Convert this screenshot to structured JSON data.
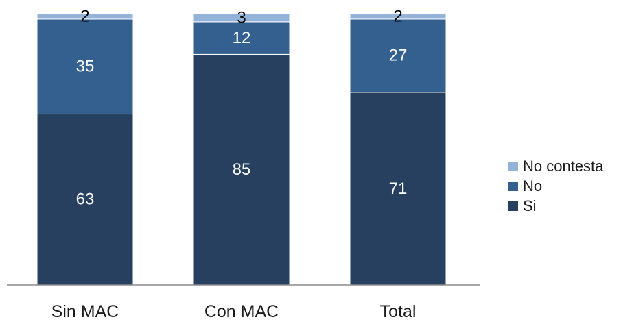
{
  "chart_data": {
    "type": "bar",
    "stacked": true,
    "categories": [
      "Sin MAC",
      "Con MAC",
      "Total"
    ],
    "series": [
      {
        "name": "Si",
        "values": [
          63,
          85,
          71
        ],
        "color": "#27405f",
        "label_color": "#ffffff"
      },
      {
        "name": "No",
        "values": [
          35,
          12,
          27
        ],
        "color": "#33608f",
        "label_color": "#ffffff"
      },
      {
        "name": "No contesta",
        "values": [
          2,
          3,
          2
        ],
        "color": "#93b3d8",
        "label_color": "#000000"
      }
    ],
    "ylim": [
      0,
      100
    ],
    "legend_position": "right",
    "legend_order": [
      "No contesta",
      "No",
      "Si"
    ],
    "grid": false
  }
}
